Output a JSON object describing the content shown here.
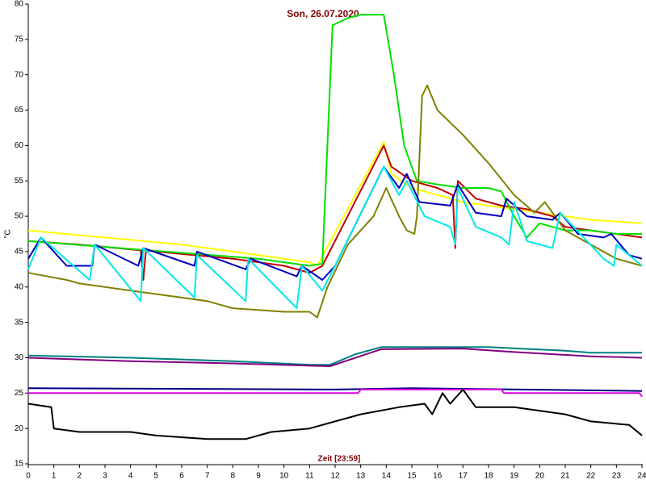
{
  "chart_data": {
    "type": "line",
    "title": "Son, 26.07.2020",
    "x_label": "Zeit [23:59]",
    "y_label": "°C",
    "xlim": [
      0,
      24
    ],
    "ylim": [
      15,
      80
    ],
    "xticks": [
      0,
      1,
      2,
      3,
      4,
      5,
      6,
      7,
      8,
      9,
      10,
      11,
      12,
      13,
      14,
      15,
      16,
      17,
      18,
      19,
      20,
      21,
      22,
      23,
      24
    ],
    "yticks": [
      15,
      20,
      25,
      30,
      35,
      40,
      45,
      50,
      55,
      60,
      65,
      70,
      75,
      80
    ],
    "series": [
      {
        "color": "#ffff00",
        "x": [
          0,
          3,
          6,
          8,
          10,
          11,
          11.3,
          13.9,
          14.2,
          15,
          16,
          17,
          18,
          19,
          20,
          21,
          22,
          24
        ],
        "values": [
          48,
          47,
          46,
          45,
          44,
          43.5,
          43,
          60.5,
          56,
          54,
          53,
          52,
          51.5,
          51,
          50.5,
          50,
          49.5,
          49
        ]
      },
      {
        "color": "#c00000",
        "x": [
          0,
          2,
          4.4,
          4.5,
          4.6,
          5,
          8,
          10,
          11,
          11.5,
          13.9,
          14.2,
          15,
          16,
          16.6,
          16.7,
          16.8,
          17.5,
          18.5,
          19.5,
          20.5,
          21,
          22,
          23,
          24
        ],
        "values": [
          46.5,
          46,
          45.2,
          41,
          45.2,
          45,
          44,
          43,
          42,
          43,
          60,
          57,
          55,
          54,
          53,
          45.5,
          55,
          52.5,
          51.5,
          51,
          50,
          48.5,
          48,
          47.5,
          47
        ]
      },
      {
        "color": "#00e000",
        "x": [
          0,
          9,
          11,
          11.5,
          11.9,
          12.5,
          13,
          13.9,
          14.3,
          14.7,
          15.2,
          16,
          17,
          18,
          18.5,
          19,
          19.5,
          20,
          21,
          22,
          23,
          24
        ],
        "values": [
          46.5,
          44,
          43,
          43.3,
          77,
          78,
          78.5,
          78.5,
          70,
          60,
          55,
          54.5,
          54,
          54,
          53.5,
          50,
          47,
          49,
          48,
          48,
          47.5,
          47.5
        ]
      },
      {
        "color": "#808000",
        "x": [
          0,
          1.5,
          2,
          4,
          6,
          7,
          8,
          10,
          11,
          11.3,
          11.7,
          12.5,
          13.5,
          14,
          14.5,
          14.8,
          15.1,
          15.2,
          15.4,
          15.6,
          16,
          17,
          18,
          19,
          19.8,
          20.2,
          21,
          22,
          23,
          24
        ],
        "values": [
          42,
          41,
          40.5,
          39.5,
          38.5,
          38,
          37,
          36.5,
          36.5,
          35.7,
          40,
          46,
          50,
          54,
          50,
          48,
          47.5,
          50,
          67,
          68.5,
          65,
          61.5,
          57.5,
          53,
          50.5,
          52,
          48,
          46,
          44,
          43
        ]
      },
      {
        "color": "#0000c0",
        "x": [
          0,
          0.5,
          1.5,
          2.5,
          2.6,
          4.3,
          4.5,
          6.5,
          6.6,
          8.5,
          8.7,
          10.5,
          10.7,
          11.5,
          12,
          13.9,
          14.5,
          14.8,
          15.3,
          16.5,
          16.8,
          17.5,
          18.5,
          18.7,
          19.5,
          20.5,
          20.8,
          21.5,
          22.5,
          22.8,
          23.5,
          24
        ],
        "values": [
          44,
          47,
          43,
          43,
          46,
          43,
          45.5,
          43,
          45,
          42.5,
          44,
          41.5,
          43,
          41,
          43,
          57,
          54,
          56,
          52,
          51.5,
          54.5,
          50.5,
          50,
          52.5,
          50,
          49.5,
          50.5,
          47.5,
          47,
          47.5,
          44.5,
          44
        ]
      },
      {
        "color": "#00e8e8",
        "x": [
          0,
          0.5,
          2.4,
          2.6,
          4.4,
          4.5,
          6.5,
          6.6,
          8.5,
          8.6,
          10.5,
          10.7,
          11.5,
          12,
          13.9,
          14.5,
          14.8,
          15.5,
          16.5,
          16.7,
          16.8,
          17.5,
          18.5,
          18.8,
          19,
          19.5,
          20.5,
          20.8,
          22.5,
          22.9,
          23,
          24
        ],
        "values": [
          42.5,
          47,
          41,
          46,
          38,
          45.5,
          38.5,
          44.5,
          38,
          44,
          37,
          43,
          39.5,
          43,
          57,
          53,
          55,
          50,
          48.5,
          46,
          54,
          48.5,
          47,
          46,
          52,
          46.5,
          45.5,
          50.5,
          44,
          43,
          46,
          43
        ]
      },
      {
        "color": "#008080",
        "x": [
          0,
          4,
          8,
          11,
          11.8,
          12.8,
          13.8,
          18,
          21,
          22,
          24
        ],
        "values": [
          30.3,
          30,
          29.5,
          29,
          29,
          30.5,
          31.5,
          31.5,
          31,
          30.7,
          30.7
        ]
      },
      {
        "color": "#800080",
        "x": [
          0,
          4,
          8,
          11.8,
          13.8,
          17,
          19,
          22,
          24
        ],
        "values": [
          30,
          29.5,
          29.2,
          28.8,
          31.2,
          31.3,
          30.8,
          30.2,
          30
        ]
      },
      {
        "color": "#000080",
        "x": [
          0,
          12,
          15,
          24
        ],
        "values": [
          25.7,
          25.5,
          25.7,
          25.3
        ]
      },
      {
        "color": "#e000e0",
        "x": [
          0,
          12.9,
          13,
          18.5,
          18.6,
          23.9,
          24
        ],
        "values": [
          25,
          25,
          25.5,
          25.5,
          25,
          25,
          24.5
        ]
      },
      {
        "color": "#000000",
        "x": [
          0,
          0.9,
          1,
          2,
          4,
          5,
          7,
          8.5,
          9.5,
          11,
          12,
          13,
          14.5,
          15.5,
          15.8,
          16.2,
          16.5,
          17,
          17.5,
          19,
          21,
          22,
          23.5,
          24
        ],
        "values": [
          23.5,
          23,
          20,
          19.5,
          19.5,
          19,
          18.5,
          18.5,
          19.5,
          20,
          21,
          22,
          23,
          23.5,
          22,
          25,
          23.5,
          25.5,
          23,
          23,
          22,
          21,
          20.5,
          19
        ]
      }
    ]
  }
}
